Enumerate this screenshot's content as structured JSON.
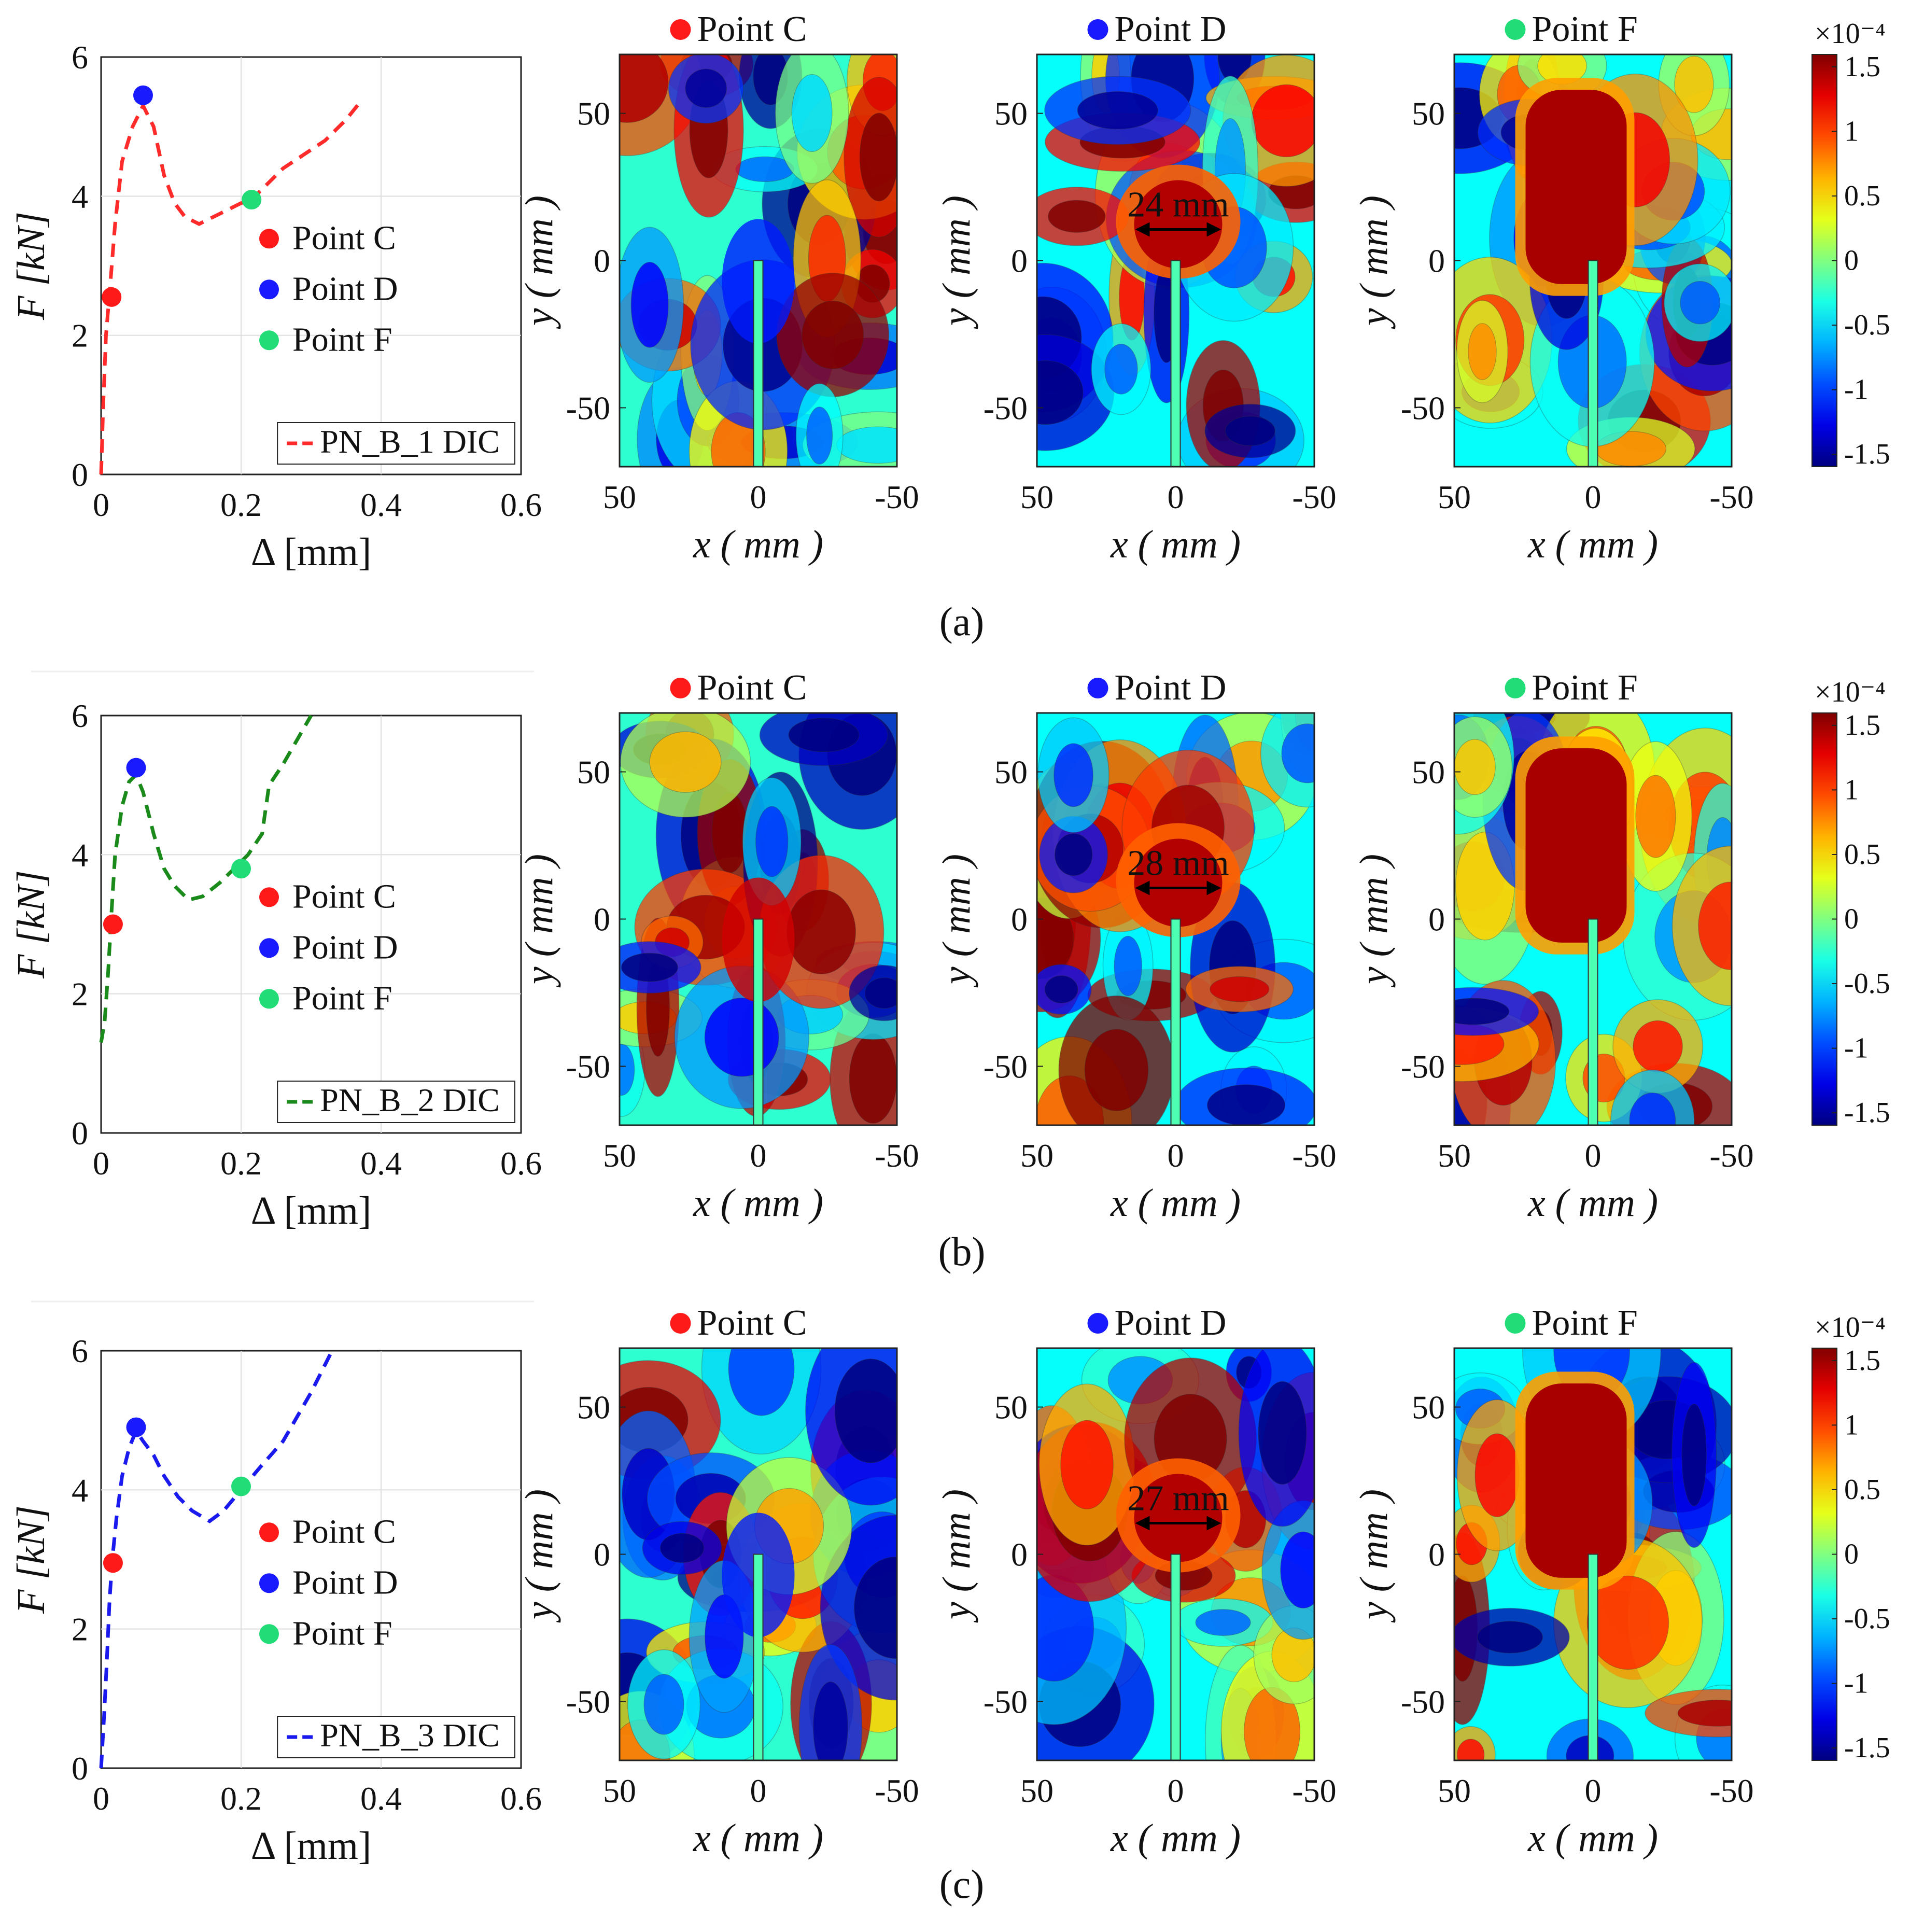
{
  "figure": {
    "panel_labels": [
      "(a)",
      "(b)",
      "(c)"
    ],
    "contour_axis_labels": {
      "x": "x ( mm )",
      "y": "y ( mm )"
    },
    "colorbar": {
      "exponent": "×10⁻⁴",
      "ticks": [
        "1.5",
        "1",
        "0.5",
        "0",
        "-0.5",
        "-1",
        "-1.5"
      ]
    }
  },
  "chart_data": [
    {
      "type": "line",
      "panel": "a",
      "xlabel": "Δ [mm]",
      "ylabel": "F [kN]",
      "xlim": [
        0,
        0.6
      ],
      "ylim": [
        0,
        6
      ],
      "xticks": [
        "0",
        "0.2",
        "0.4",
        "0.6"
      ],
      "yticks": [
        "0",
        "2",
        "4",
        "6"
      ],
      "series": [
        {
          "name": "PN_B_1 DIC",
          "color": "#ff2a2a",
          "x": [
            0,
            0.003,
            0.007,
            0.012,
            0.02,
            0.03,
            0.045,
            0.06,
            0.075,
            0.09,
            0.105,
            0.12,
            0.14,
            0.16,
            0.18,
            0.2,
            0.215,
            0.23,
            0.26,
            0.29,
            0.32,
            0.35,
            0.37
          ],
          "y": [
            0,
            1.0,
            2.0,
            2.6,
            3.6,
            4.5,
            5.0,
            5.3,
            5.0,
            4.3,
            3.9,
            3.7,
            3.6,
            3.7,
            3.8,
            3.9,
            3.95,
            4.1,
            4.4,
            4.6,
            4.8,
            5.1,
            5.35
          ]
        }
      ],
      "markers": [
        {
          "label": "Point C",
          "x": 0.015,
          "y": 2.55,
          "color": "#ff1a1a"
        },
        {
          "label": "Point D",
          "x": 0.06,
          "y": 5.45,
          "color": "#1a1aff"
        },
        {
          "label": "Point F",
          "x": 0.215,
          "y": 3.95,
          "color": "#22dd77"
        }
      ],
      "legend_box": "PN_B_1 DIC",
      "contour_titles": [
        "Point C",
        "Point D",
        "Point F"
      ],
      "measure_annotation": "24 mm"
    },
    {
      "type": "line",
      "panel": "b",
      "xlabel": "Δ [mm]",
      "ylabel": "F [kN]",
      "xlim": [
        0,
        0.6
      ],
      "ylim": [
        0,
        6
      ],
      "xticks": [
        "0",
        "0.2",
        "0.4",
        "0.6"
      ],
      "yticks": [
        "0",
        "2",
        "4",
        "6"
      ],
      "series": [
        {
          "name": "PN_B_2 DIC",
          "color": "#1a8a1a",
          "x": [
            0,
            0.005,
            0.01,
            0.015,
            0.02,
            0.03,
            0.04,
            0.05,
            0.06,
            0.075,
            0.09,
            0.105,
            0.125,
            0.145,
            0.17,
            0.19,
            0.21,
            0.23,
            0.24,
            0.26,
            0.3
          ],
          "y": [
            1.3,
            1.6,
            2.3,
            3.2,
            4.0,
            4.7,
            5.05,
            5.15,
            4.9,
            4.3,
            3.8,
            3.55,
            3.35,
            3.4,
            3.6,
            3.8,
            4.0,
            4.3,
            5.0,
            5.3,
            6.0
          ]
        }
      ],
      "markers": [
        {
          "label": "Point C",
          "x": 0.017,
          "y": 3.0,
          "color": "#ff1a1a"
        },
        {
          "label": "Point D",
          "x": 0.05,
          "y": 5.25,
          "color": "#1a1aff"
        },
        {
          "label": "Point F",
          "x": 0.2,
          "y": 3.8,
          "color": "#22dd77"
        }
      ],
      "legend_box": "PN_B_2 DIC",
      "contour_titles": [
        "Point C",
        "Point D",
        "Point F"
      ],
      "measure_annotation": "28 mm"
    },
    {
      "type": "line",
      "panel": "c",
      "xlabel": "Δ [mm]",
      "ylabel": "F [kN]",
      "xlim": [
        0,
        0.6
      ],
      "ylim": [
        0,
        6
      ],
      "xticks": [
        "0",
        "0.2",
        "0.4",
        "0.6"
      ],
      "yticks": [
        "0",
        "2",
        "4",
        "6"
      ],
      "series": [
        {
          "name": "PN_B_3 DIC",
          "color": "#1a1aee",
          "x": [
            0,
            0.004,
            0.008,
            0.012,
            0.016,
            0.022,
            0.03,
            0.04,
            0.05,
            0.06,
            0.075,
            0.09,
            0.11,
            0.13,
            0.155,
            0.175,
            0.2,
            0.225,
            0.26,
            0.3,
            0.33
          ],
          "y": [
            0,
            0.7,
            1.5,
            2.4,
            3.0,
            3.6,
            4.2,
            4.6,
            4.85,
            4.7,
            4.5,
            4.2,
            3.9,
            3.7,
            3.55,
            3.7,
            4.0,
            4.3,
            4.7,
            5.4,
            6.0
          ]
        }
      ],
      "markers": [
        {
          "label": "Point C",
          "x": 0.017,
          "y": 2.95,
          "color": "#ff1a1a"
        },
        {
          "label": "Point D",
          "x": 0.05,
          "y": 4.9,
          "color": "#1a1aff"
        },
        {
          "label": "Point F",
          "x": 0.2,
          "y": 4.05,
          "color": "#22dd77"
        }
      ],
      "legend_box": "PN_B_3 DIC",
      "contour_titles": [
        "Point C",
        "Point D",
        "Point F"
      ],
      "measure_annotation": "27 mm"
    },
    {
      "type": "heatmap",
      "panel": "all",
      "description_units": "x ( mm ), y ( mm )",
      "xlim": [
        50,
        -50
      ],
      "ylim": [
        -70,
        70
      ],
      "xticks": [
        "50",
        "0",
        "-50"
      ],
      "yticks": [
        "50",
        "0",
        "-50"
      ],
      "colorbar_range": [
        -1.5,
        1.5
      ]
    }
  ]
}
